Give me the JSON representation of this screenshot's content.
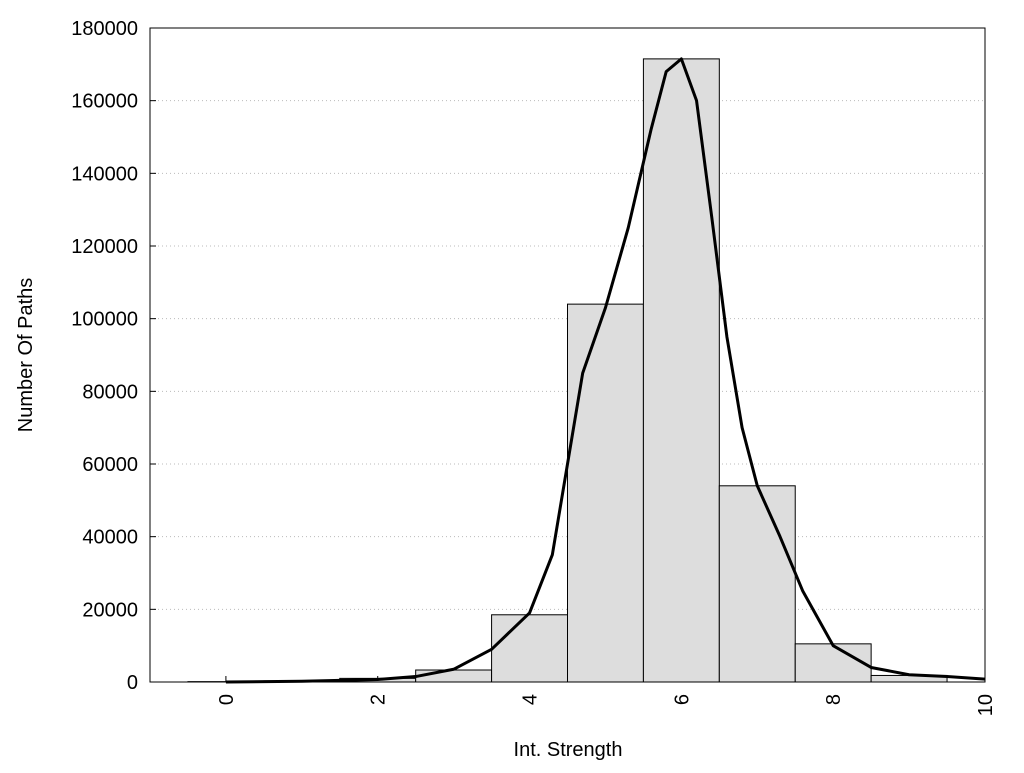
{
  "chart_data": {
    "type": "histogram",
    "xlabel": "Int. Strength",
    "ylabel": "Number Of Paths",
    "bins": [
      -0.5,
      0.5,
      1.5,
      2.5,
      3.5,
      4.5,
      5.5,
      6.5,
      7.5,
      8.5,
      9.5
    ],
    "counts": [
      100,
      300,
      1000,
      3300,
      18500,
      104000,
      171500,
      54000,
      10500,
      1800
    ],
    "color": "#dddddd",
    "curve": {
      "color": "#000000",
      "x": [
        0,
        1,
        2,
        2.5,
        3,
        3.5,
        4,
        4.3,
        4.5,
        4.7,
        5,
        5.3,
        5.6,
        5.8,
        6,
        6.2,
        6.4,
        6.6,
        6.8,
        7,
        7.3,
        7.6,
        8,
        8.5,
        9,
        9.5,
        10
      ],
      "values": [
        0,
        200,
        700,
        1500,
        3500,
        9000,
        19000,
        35000,
        60000,
        85000,
        103000,
        125000,
        152000,
        168000,
        171500,
        160000,
        128000,
        95000,
        70000,
        54000,
        40000,
        25000,
        10000,
        4000,
        2000,
        1500,
        800
      ]
    },
    "xlim": [
      -1,
      10
    ],
    "xticks": [
      0,
      2,
      4,
      6,
      8,
      10
    ],
    "ylim": [
      0,
      180000
    ],
    "yticks": [
      0,
      20000,
      40000,
      60000,
      80000,
      100000,
      120000,
      140000,
      160000,
      180000
    ],
    "grid": true
  }
}
